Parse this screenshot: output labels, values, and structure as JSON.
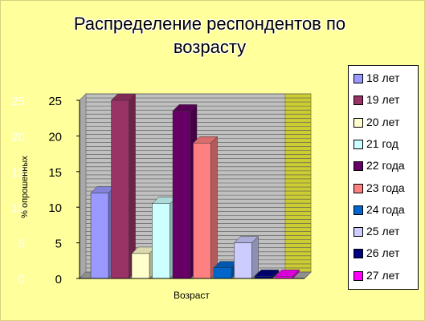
{
  "chart_data": {
    "type": "bar",
    "title": "Распределение респондентов по возрасту",
    "xlabel": "Возраст",
    "ylabel": "% опрошенных",
    "ylim": [
      0,
      25
    ],
    "yticks": [
      0,
      5,
      10,
      15,
      20,
      25
    ],
    "categories": [
      "18 лет",
      "19 лет",
      "20 лет",
      "21 год",
      "22 года",
      "23 года",
      "24 года",
      "25 лет",
      "26 лет",
      "27 лет"
    ],
    "values": [
      12,
      25,
      3.5,
      10.5,
      23.5,
      19,
      1.5,
      5,
      0.3,
      0.3
    ],
    "colors": [
      "#9999ff",
      "#993366",
      "#ffffcc",
      "#ccffff",
      "#660066",
      "#ff8080",
      "#0066cc",
      "#ccccff",
      "#000080",
      "#ff00ff"
    ],
    "grid": true,
    "legend": "right"
  }
}
